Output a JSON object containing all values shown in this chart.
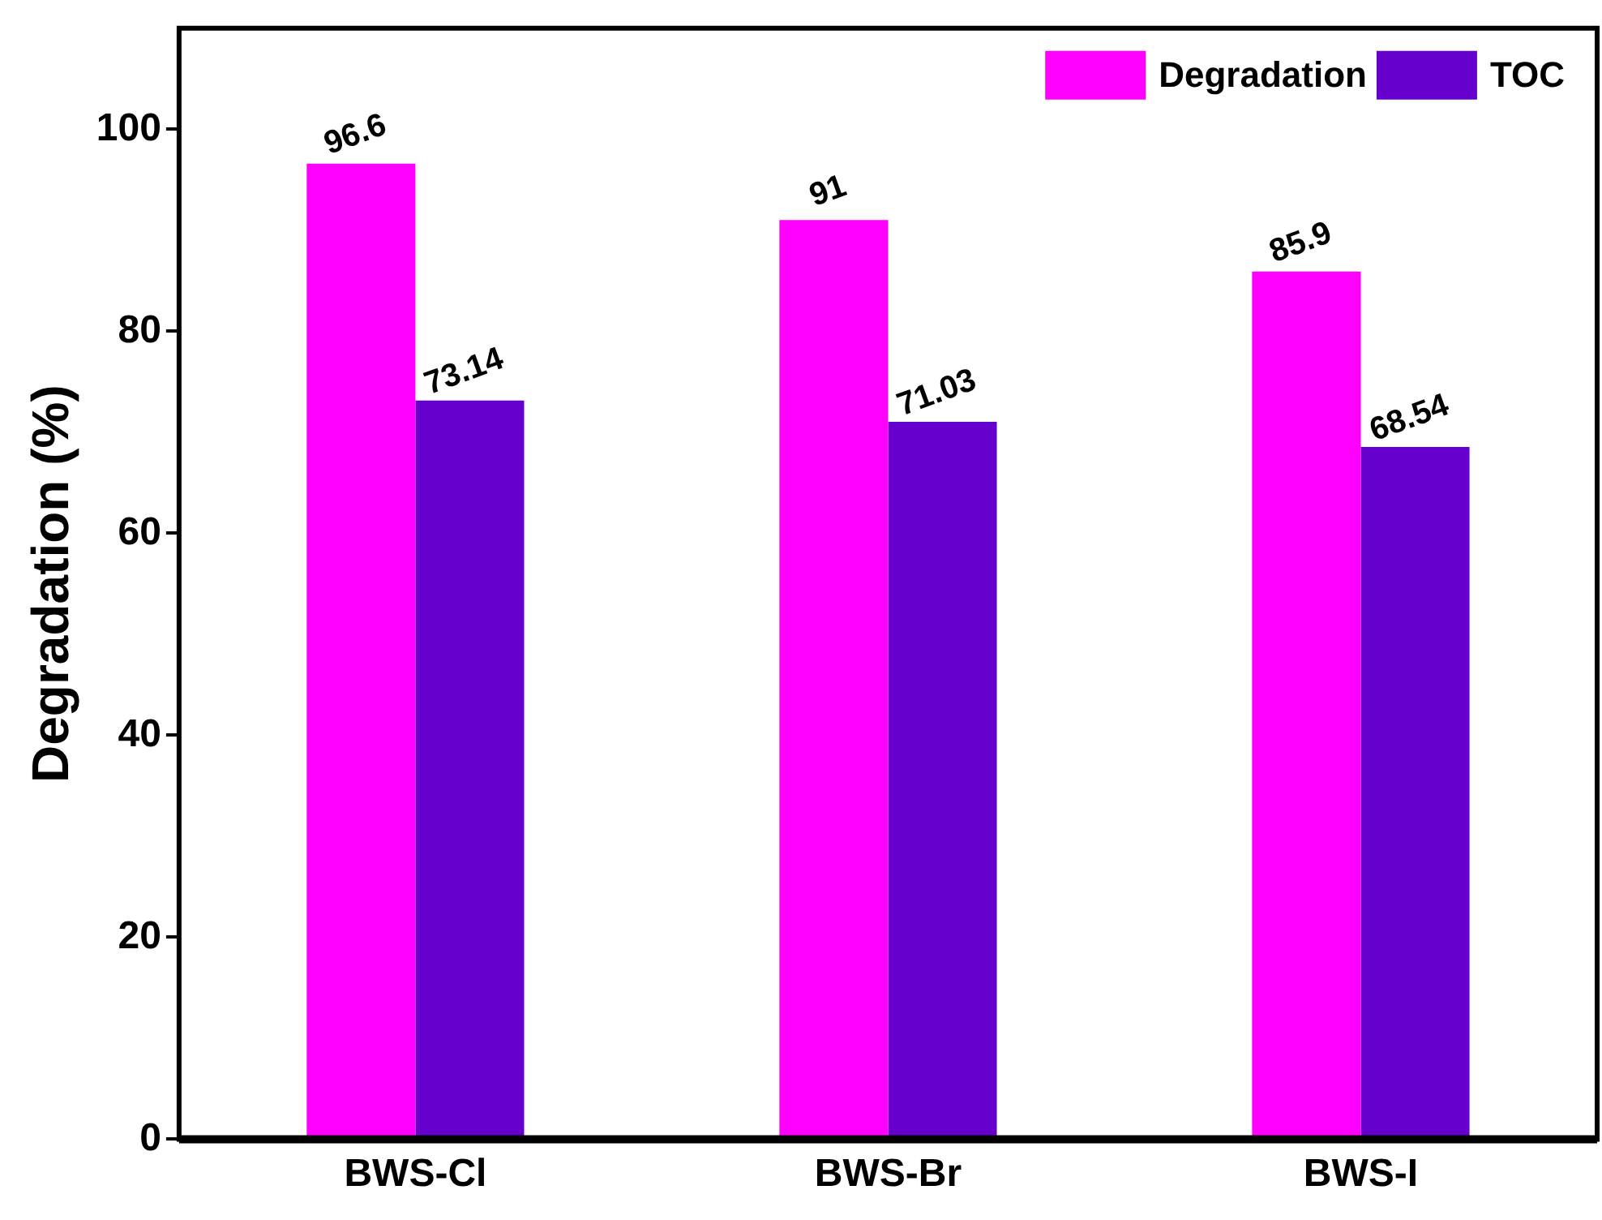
{
  "chart_data": {
    "type": "bar",
    "ylabel": "Degradation (%)",
    "categories": [
      "BWS-Cl",
      "BWS-Br",
      "BWS-I"
    ],
    "series": [
      {
        "name": "Degradation",
        "color": "#ff00ff",
        "values": [
          96.6,
          91,
          85.9
        ]
      },
      {
        "name": "TOC",
        "color": "#6600cc",
        "values": [
          73.14,
          71.03,
          68.54
        ]
      }
    ],
    "ylim": [
      0,
      110
    ],
    "yticks": [
      0,
      20,
      40,
      60,
      80,
      100
    ],
    "grid": false,
    "legend": "top right",
    "data_labels": true
  }
}
